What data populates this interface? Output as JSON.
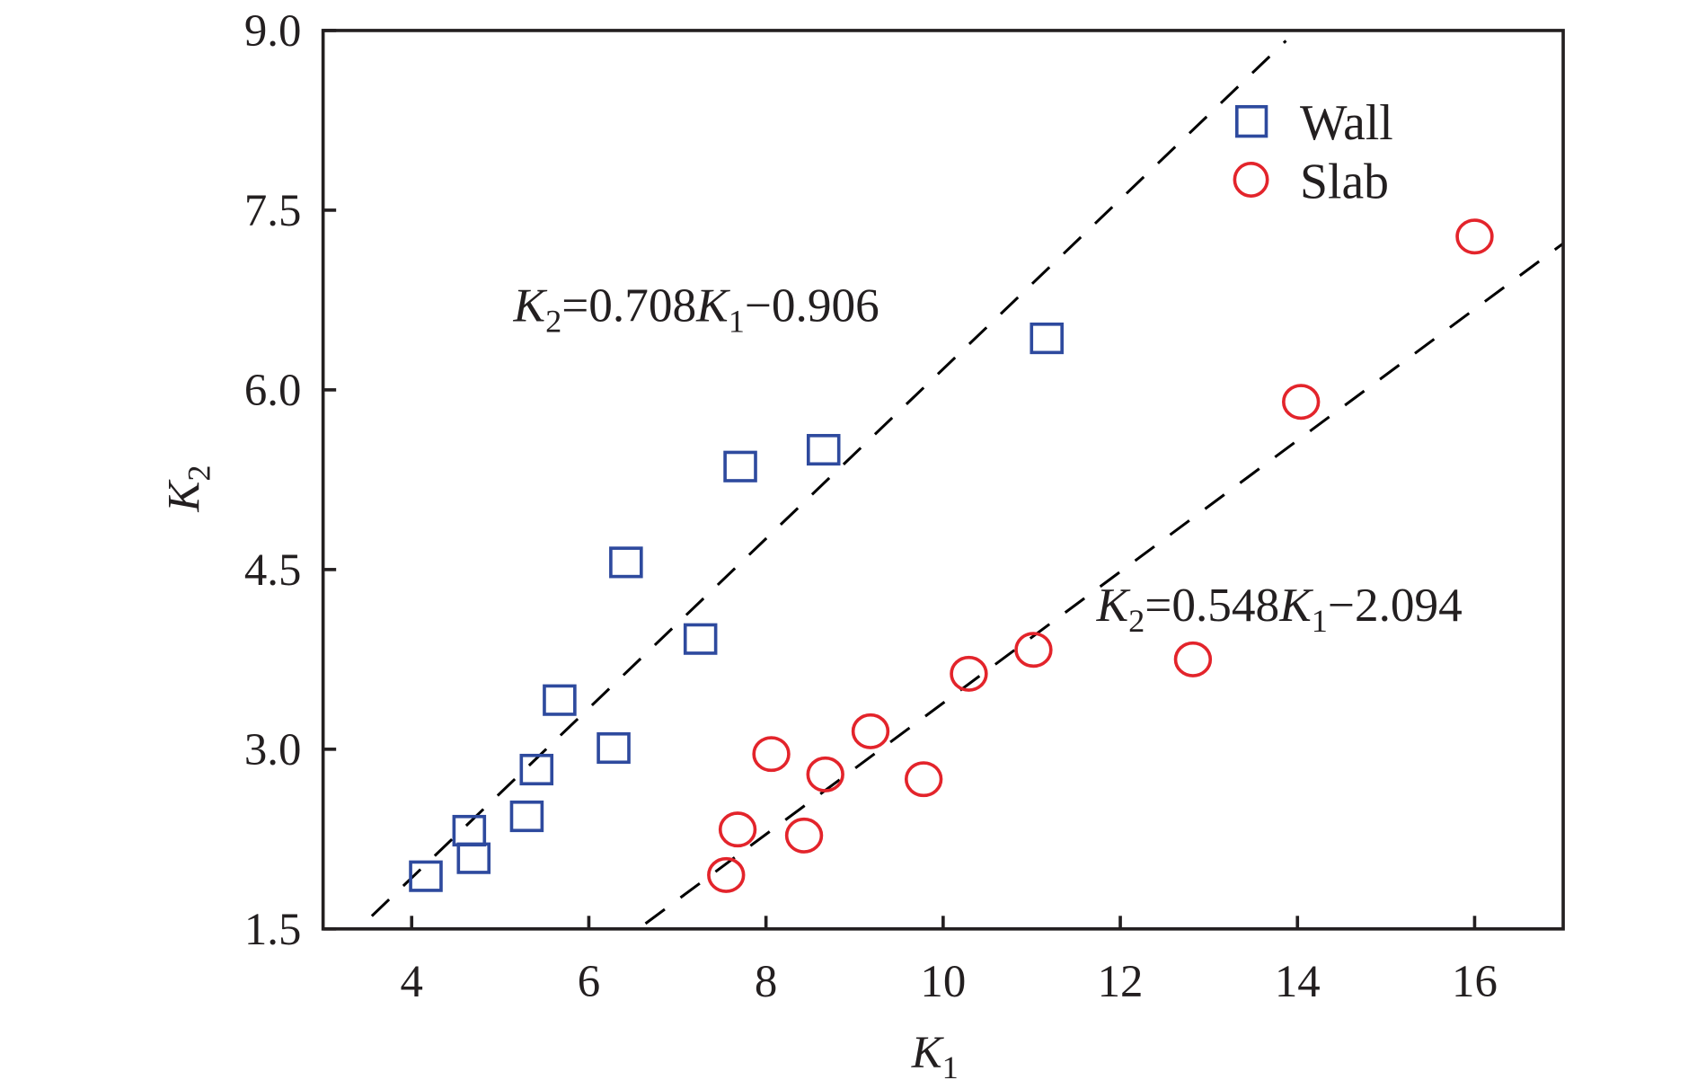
{
  "chart_data": {
    "type": "scatter",
    "title": "",
    "xlabel": "K1",
    "ylabel": "K2",
    "xlim": [
      3,
      17
    ],
    "ylim": [
      1.5,
      9.0
    ],
    "xticks": [
      "4",
      "6",
      "8",
      "10",
      "12",
      "14",
      "16"
    ],
    "yticks": [
      "1.5",
      "3.0",
      "4.5",
      "6.0",
      "7.5",
      "9.0"
    ],
    "grid": false,
    "legend_position": "top-right",
    "colors": {
      "wall": "#2e4a9e",
      "slab": "#e3242b",
      "fit": "#000000"
    },
    "series": [
      {
        "name": "Wall",
        "marker": "square",
        "x": [
          4.16,
          4.65,
          4.7,
          5.3,
          5.41,
          5.67,
          6.28,
          6.42,
          7.26,
          7.71,
          8.65,
          11.17
        ],
        "y": [
          1.94,
          2.32,
          2.09,
          2.44,
          2.83,
          3.41,
          3.01,
          4.56,
          3.92,
          5.36,
          5.5,
          6.43
        ]
      },
      {
        "name": "Slab",
        "marker": "circle",
        "x": [
          7.55,
          7.68,
          8.06,
          8.43,
          8.67,
          9.18,
          9.78,
          10.29,
          11.02,
          12.82,
          14.04,
          16.0
        ],
        "y": [
          1.95,
          2.33,
          2.96,
          2.28,
          2.79,
          3.15,
          2.75,
          3.63,
          3.83,
          3.75,
          5.9,
          7.28
        ]
      }
    ],
    "fits": [
      {
        "series": "Wall",
        "slope": 0.708,
        "intercept": -0.906,
        "x_range": [
          3.55,
          13.87
        ],
        "label": {
          "k": "K",
          "s2": "2",
          "mid": "=0.708",
          "s1": "1",
          "tail": "−0.906"
        }
      },
      {
        "series": "Slab",
        "slope": 0.548,
        "intercept": -2.094,
        "x_range": [
          6.64,
          17.0
        ],
        "label": {
          "k": "K",
          "s2": "2",
          "mid": "=0.548",
          "s1": "1",
          "tail": "−2.094"
        }
      }
    ],
    "axis_labels": {
      "x_main": "K",
      "x_sub": "1",
      "y_main": "K",
      "y_sub": "2"
    }
  }
}
